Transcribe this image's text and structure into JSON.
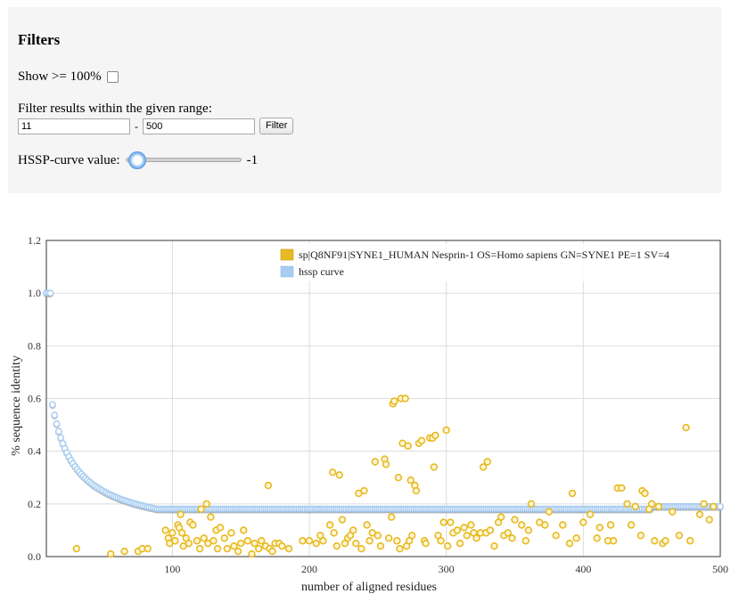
{
  "filters": {
    "title": "Filters",
    "show_label": "Show >= 100%",
    "range_label": "Filter results within the given range:",
    "range_min": "11",
    "range_sep": "-",
    "range_max": "500",
    "filter_button": "Filter",
    "hssp_label": "HSSP-curve value:",
    "hssp_value": "-1",
    "hssp_slider_fraction": 0.0
  },
  "colors": {
    "gold": "#e8b923",
    "blue": "#a9cdf2",
    "panel": "#f5f5f5"
  },
  "chart_data": {
    "type": "scatter",
    "xlabel": "number of aligned residues",
    "ylabel": "% sequence identity",
    "xlim": [
      8,
      500
    ],
    "ylim": [
      0,
      1.2
    ],
    "xticks": [
      "100",
      "200",
      "300",
      "400",
      "500"
    ],
    "yticks": [
      "0.0",
      "0.2",
      "0.4",
      "0.6",
      "0.8",
      "1.0",
      "1.2"
    ],
    "grid": true,
    "legend_position": "top-right",
    "series": [
      {
        "name": "sp|Q8NF91|SYNE1_HUMAN Nesprin-1 OS=Homo sapiens GN=SYNE1 PE=1 SV=4",
        "color": "#e8b923",
        "points": [
          [
            30,
            0.03
          ],
          [
            55,
            0.01
          ],
          [
            65,
            0.02
          ],
          [
            75,
            0.02
          ],
          [
            78,
            0.03
          ],
          [
            82,
            0.03
          ],
          [
            95,
            0.1
          ],
          [
            97,
            0.07
          ],
          [
            98,
            0.05
          ],
          [
            100,
            0.09
          ],
          [
            102,
            0.06
          ],
          [
            104,
            0.12
          ],
          [
            105,
            0.11
          ],
          [
            106,
            0.16
          ],
          [
            107,
            0.09
          ],
          [
            108,
            0.04
          ],
          [
            110,
            0.07
          ],
          [
            112,
            0.05
          ],
          [
            113,
            0.13
          ],
          [
            115,
            0.12
          ],
          [
            118,
            0.06
          ],
          [
            120,
            0.03
          ],
          [
            121,
            0.18
          ],
          [
            123,
            0.07
          ],
          [
            125,
            0.2
          ],
          [
            126,
            0.05
          ],
          [
            128,
            0.15
          ],
          [
            130,
            0.06
          ],
          [
            132,
            0.1
          ],
          [
            133,
            0.03
          ],
          [
            135,
            0.11
          ],
          [
            138,
            0.07
          ],
          [
            140,
            0.03
          ],
          [
            143,
            0.09
          ],
          [
            145,
            0.04
          ],
          [
            148,
            0.02
          ],
          [
            150,
            0.05
          ],
          [
            152,
            0.1
          ],
          [
            155,
            0.06
          ],
          [
            158,
            0.01
          ],
          [
            160,
            0.05
          ],
          [
            163,
            0.03
          ],
          [
            165,
            0.06
          ],
          [
            168,
            0.04
          ],
          [
            170,
            0.27
          ],
          [
            171,
            0.03
          ],
          [
            173,
            0.02
          ],
          [
            175,
            0.05
          ],
          [
            178,
            0.05
          ],
          [
            180,
            0.04
          ],
          [
            185,
            0.03
          ],
          [
            195,
            0.06
          ],
          [
            200,
            0.06
          ],
          [
            205,
            0.05
          ],
          [
            208,
            0.08
          ],
          [
            210,
            0.06
          ],
          [
            215,
            0.12
          ],
          [
            217,
            0.32
          ],
          [
            218,
            0.09
          ],
          [
            220,
            0.04
          ],
          [
            222,
            0.31
          ],
          [
            224,
            0.14
          ],
          [
            226,
            0.05
          ],
          [
            228,
            0.07
          ],
          [
            230,
            0.08
          ],
          [
            232,
            0.1
          ],
          [
            234,
            0.05
          ],
          [
            236,
            0.24
          ],
          [
            238,
            0.03
          ],
          [
            240,
            0.25
          ],
          [
            242,
            0.12
          ],
          [
            244,
            0.06
          ],
          [
            246,
            0.09
          ],
          [
            248,
            0.36
          ],
          [
            250,
            0.08
          ],
          [
            252,
            0.04
          ],
          [
            255,
            0.37
          ],
          [
            256,
            0.35
          ],
          [
            258,
            0.07
          ],
          [
            260,
            0.15
          ],
          [
            261,
            0.58
          ],
          [
            262,
            0.59
          ],
          [
            264,
            0.06
          ],
          [
            265,
            0.3
          ],
          [
            266,
            0.03
          ],
          [
            267,
            0.6
          ],
          [
            268,
            0.43
          ],
          [
            270,
            0.6
          ],
          [
            271,
            0.04
          ],
          [
            272,
            0.42
          ],
          [
            273,
            0.06
          ],
          [
            274,
            0.29
          ],
          [
            275,
            0.08
          ],
          [
            277,
            0.27
          ],
          [
            278,
            0.25
          ],
          [
            280,
            0.43
          ],
          [
            282,
            0.44
          ],
          [
            284,
            0.06
          ],
          [
            285,
            0.05
          ],
          [
            288,
            0.45
          ],
          [
            290,
            0.45
          ],
          [
            291,
            0.34
          ],
          [
            292,
            0.46
          ],
          [
            294,
            0.08
          ],
          [
            296,
            0.06
          ],
          [
            298,
            0.13
          ],
          [
            300,
            0.48
          ],
          [
            301,
            0.04
          ],
          [
            303,
            0.13
          ],
          [
            305,
            0.09
          ],
          [
            308,
            0.1
          ],
          [
            310,
            0.05
          ],
          [
            313,
            0.11
          ],
          [
            315,
            0.08
          ],
          [
            318,
            0.12
          ],
          [
            320,
            0.09
          ],
          [
            322,
            0.07
          ],
          [
            325,
            0.09
          ],
          [
            327,
            0.34
          ],
          [
            329,
            0.09
          ],
          [
            330,
            0.36
          ],
          [
            332,
            0.1
          ],
          [
            335,
            0.04
          ],
          [
            340,
            0.15
          ],
          [
            342,
            0.08
          ],
          [
            345,
            0.09
          ],
          [
            348,
            0.07
          ],
          [
            350,
            0.14
          ],
          [
            355,
            0.12
          ],
          [
            358,
            0.06
          ],
          [
            360,
            0.1
          ],
          [
            362,
            0.2
          ],
          [
            368,
            0.13
          ],
          [
            372,
            0.12
          ],
          [
            375,
            0.17
          ],
          [
            380,
            0.08
          ],
          [
            385,
            0.12
          ],
          [
            390,
            0.05
          ],
          [
            395,
            0.07
          ],
          [
            400,
            0.13
          ],
          [
            405,
            0.16
          ],
          [
            410,
            0.07
          ],
          [
            412,
            0.11
          ],
          [
            418,
            0.06
          ],
          [
            420,
            0.12
          ],
          [
            422,
            0.06
          ],
          [
            425,
            0.26
          ],
          [
            428,
            0.26
          ],
          [
            432,
            0.2
          ],
          [
            435,
            0.12
          ],
          [
            438,
            0.19
          ],
          [
            442,
            0.08
          ],
          [
            443,
            0.25
          ],
          [
            445,
            0.24
          ],
          [
            448,
            0.18
          ],
          [
            450,
            0.2
          ],
          [
            452,
            0.06
          ],
          [
            455,
            0.19
          ],
          [
            458,
            0.05
          ],
          [
            460,
            0.06
          ],
          [
            465,
            0.17
          ],
          [
            470,
            0.08
          ],
          [
            475,
            0.49
          ],
          [
            478,
            0.06
          ],
          [
            485,
            0.16
          ],
          [
            488,
            0.2
          ],
          [
            492,
            0.14
          ],
          [
            495,
            0.19
          ],
          [
            392,
            0.24
          ],
          [
            338,
            0.13
          ]
        ]
      },
      {
        "name": "hssp curve",
        "color": "#a9cdf2",
        "function": "hssp",
        "x_range": [
          8,
          500
        ]
      }
    ]
  }
}
